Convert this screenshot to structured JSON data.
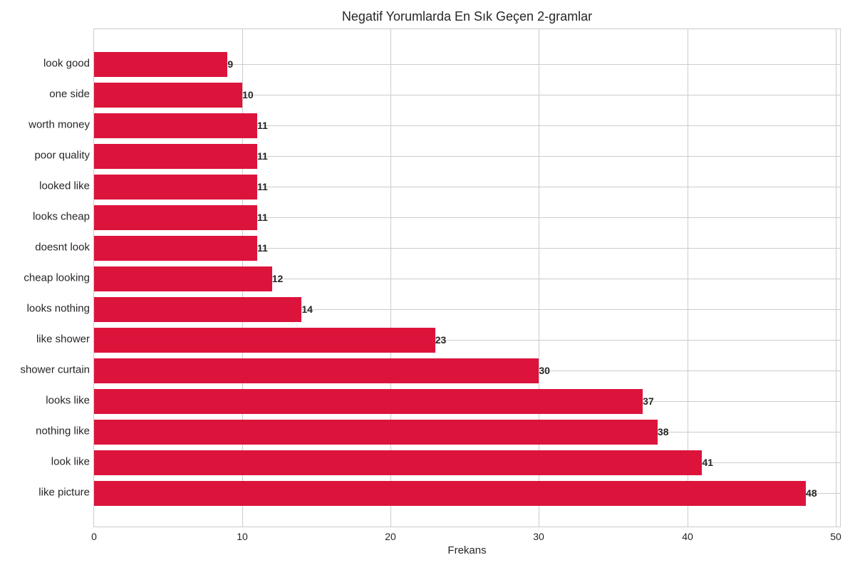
{
  "chart_data": {
    "type": "bar",
    "orientation": "horizontal",
    "title": "Negatif Yorumlarda En Sık Geçen 2-gramlar",
    "xlabel": "Frekans",
    "ylabel": "",
    "xlim": [
      0,
      50.4
    ],
    "xticks": [
      0,
      10,
      20,
      30,
      40,
      50
    ],
    "grid": true,
    "legend": null,
    "bar_color": "#dc143c",
    "categories": [
      "look good",
      "one side",
      "worth money",
      "poor quality",
      "looked like",
      "looks cheap",
      "doesnt look",
      "cheap looking",
      "looks nothing",
      "like shower",
      "shower curtain",
      "looks like",
      "nothing like",
      "look like",
      "like picture"
    ],
    "values": [
      9,
      10,
      11,
      11,
      11,
      11,
      11,
      12,
      14,
      23,
      30,
      37,
      38,
      41,
      48
    ],
    "data_labels": [
      "9",
      "10",
      "11",
      "11",
      "11",
      "11",
      "11",
      "12",
      "14",
      "23",
      "30",
      "37",
      "38",
      "41",
      "48"
    ]
  }
}
